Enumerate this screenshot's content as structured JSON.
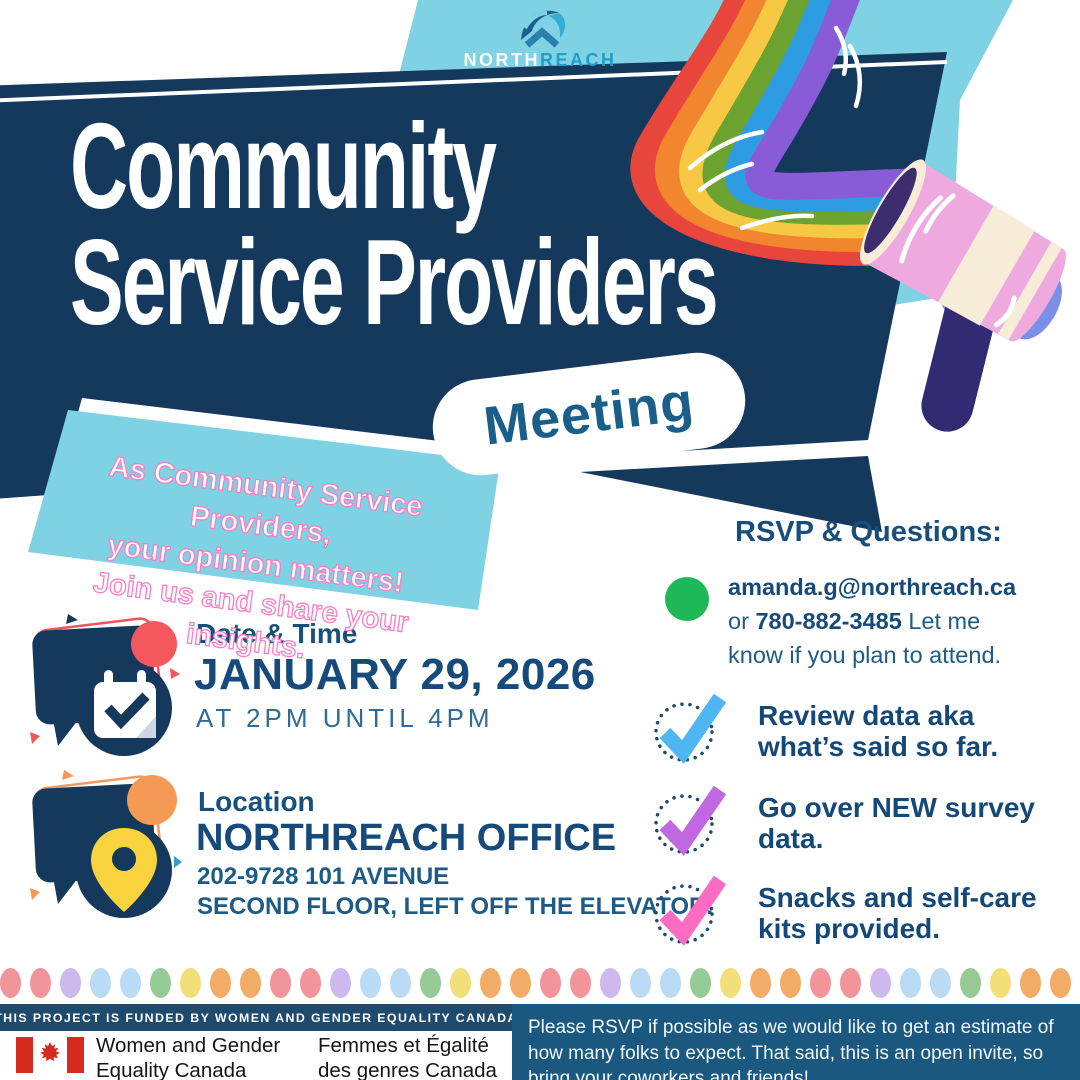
{
  "hero": {
    "logo": {
      "north": "NORTH",
      "reach": "REACH"
    },
    "title_line1": "Community",
    "title_line2": "Service Providers",
    "badge": "Meeting",
    "callout_line1": "As Community Service Providers,",
    "callout_line2": "your opinion matters!",
    "callout_line3": "Join us and share your insights."
  },
  "details": {
    "datetime": {
      "heading": "Date & Time",
      "date": "JANUARY 29, 2026",
      "time": "AT 2PM UNTIL 4PM"
    },
    "location": {
      "heading": "Location",
      "name": "NORTHREACH OFFICE",
      "address": "202-9728 101 AVENUE",
      "directions": "SECOND FLOOR, LEFT OFF THE ELEVATOR."
    }
  },
  "rsvp": {
    "heading": "RSVP & Questions:",
    "email": "amanda.g@northreach.ca",
    "conj": " or ",
    "phone": "780-882-3485",
    "note": " Let me know if you plan to attend.",
    "checklist": [
      {
        "line1": "Review data aka",
        "line2": "what’s said so far.",
        "color": "#4db6f3"
      },
      {
        "line1": "Go over NEW survey",
        "line2": "data.",
        "color": "#c267e2"
      },
      {
        "line1": "Snacks and self-care",
        "line2": "kits provided.",
        "color": "#fc6cc2"
      }
    ]
  },
  "footer": {
    "funding": "THIS PROJECT IS FUNDED BY WOMEN AND GENDER EQUALITY CANADA",
    "wage_en_line1": "Women and Gender",
    "wage_en_line2": "Equality Canada",
    "wage_fr_line1": "Femmes et Égalité",
    "wage_fr_line2": "des genres Canada",
    "rsvp_note": "Please RSVP if possible as we would like to get an estimate of how many folks to expect. That said, this is an open invite, so bring your coworkers and friends!",
    "dot_count": 36,
    "dot_colors": [
      "#f2959b",
      "#f2959b",
      "#cdb9ee",
      "#badbf6",
      "#badbf6",
      "#96cb96",
      "#f2df79",
      "#f3ac67",
      "#f3ac67"
    ]
  },
  "colors": {
    "navy": "#14395c",
    "light_blue": "#7fd2e4",
    "accent_red": "#f4575c",
    "accent_orange": "#f59a54",
    "accent_green": "#1fb859",
    "pin_yellow": "#f8d33e",
    "check_circle": "#1c4a72",
    "flag_red": "#d52b1e",
    "rainbow": [
      "#e8453c",
      "#f1862f",
      "#f7c843",
      "#6ba230",
      "#2e9ce2",
      "#8a5bd6"
    ]
  }
}
